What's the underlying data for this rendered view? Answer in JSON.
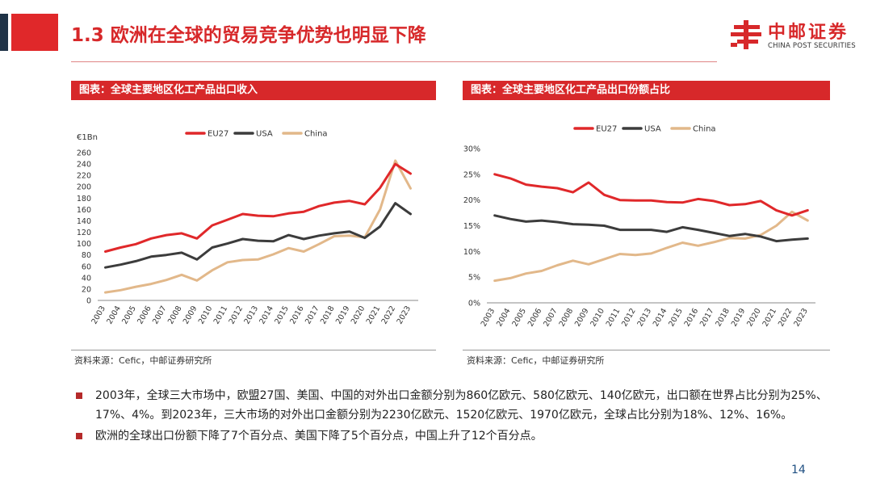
{
  "slide": {
    "title": "1.3 欧洲在全球的贸易竞争优势也明显下降",
    "page_number": "14"
  },
  "logo": {
    "name_cn": "中邮证券",
    "name_en": "CHINA POST SECURITIES"
  },
  "colors": {
    "brand_red": "#d7282a",
    "eu27": "#e0282a",
    "usa": "#3c3c3c",
    "china": "#e2b88a"
  },
  "left_panel": {
    "heading": "图表：全球主要地区化工产品出口收入",
    "source": "资料来源：Cefic，中邮证券研究所"
  },
  "right_panel": {
    "heading": "图表：全球主要地区化工产品出口份额占比",
    "source": "资料来源：Cefic，中邮证券研究所"
  },
  "chart_data": [
    {
      "type": "line",
      "title": "",
      "ylabel": "€1Bn",
      "ylim": [
        0,
        260
      ],
      "yticks": [
        "0",
        "20",
        "40",
        "60",
        "80",
        "100",
        "120",
        "140",
        "160",
        "180",
        "200",
        "220",
        "240",
        "260"
      ],
      "x": [
        "2003",
        "2004",
        "2005",
        "2006",
        "2007",
        "2008",
        "2009",
        "2010",
        "2011",
        "2012",
        "2013",
        "2014",
        "2015",
        "2016",
        "2017",
        "2018",
        "2019",
        "2020",
        "2021",
        "2022",
        "2023"
      ],
      "legend_position": "top",
      "grid": false,
      "series": [
        {
          "name": "EU27",
          "values": [
            86,
            93,
            99,
            109,
            115,
            118,
            109,
            132,
            142,
            152,
            149,
            148,
            153,
            156,
            166,
            172,
            175,
            169,
            198,
            240,
            223
          ]
        },
        {
          "name": "USA",
          "values": [
            58,
            63,
            69,
            77,
            80,
            84,
            72,
            93,
            100,
            108,
            105,
            104,
            115,
            108,
            114,
            118,
            121,
            110,
            130,
            171,
            152
          ]
        },
        {
          "name": "China",
          "values": [
            14,
            18,
            24,
            29,
            36,
            45,
            35,
            53,
            67,
            71,
            72,
            81,
            92,
            86,
            99,
            113,
            114,
            111,
            160,
            246,
            197
          ]
        }
      ]
    },
    {
      "type": "line",
      "title": "",
      "ylim": [
        0,
        30
      ],
      "yticks": [
        "0%",
        "5%",
        "10%",
        "15%",
        "20%",
        "25%",
        "30%"
      ],
      "x": [
        "2003",
        "2004",
        "2005",
        "2006",
        "2007",
        "2008",
        "2009",
        "2010",
        "2011",
        "2012",
        "2013",
        "2014",
        "2015",
        "2016",
        "2017",
        "2018",
        "2019",
        "2020",
        "2021",
        "2022",
        "2023"
      ],
      "legend_position": "top",
      "grid": false,
      "series": [
        {
          "name": "EU27",
          "values": [
            25.0,
            24.2,
            23.0,
            22.6,
            22.3,
            21.5,
            23.4,
            21.0,
            20.0,
            19.9,
            19.9,
            19.6,
            19.5,
            20.2,
            19.8,
            19.0,
            19.2,
            19.8,
            18.0,
            17.0,
            18.0
          ]
        },
        {
          "name": "USA",
          "values": [
            17.0,
            16.3,
            15.8,
            16.0,
            15.7,
            15.3,
            15.2,
            15.0,
            14.2,
            14.2,
            14.2,
            13.8,
            14.7,
            14.2,
            13.6,
            13.0,
            13.4,
            12.9,
            12.0,
            12.3,
            12.5
          ]
        },
        {
          "name": "China",
          "values": [
            4.3,
            4.8,
            5.7,
            6.2,
            7.3,
            8.2,
            7.5,
            8.5,
            9.5,
            9.3,
            9.6,
            10.7,
            11.7,
            11.1,
            11.8,
            12.6,
            12.5,
            13.2,
            15.0,
            17.7,
            16.0
          ]
        }
      ]
    }
  ],
  "bullets": [
    "2003年，全球三大市场中，欧盟27国、美国、中国的对外出口金额分别为860亿欧元、580亿欧元、140亿欧元，出口额在世界占比分别为25%、17%、4%。到2023年，三大市场的对外出口金额分别为2230亿欧元、1520亿欧元、1970亿欧元，全球占比分别为18%、12%、16%。",
    "欧洲的全球出口份额下降了7个百分点、美国下降了5个百分点，中国上升了12个百分点。"
  ]
}
